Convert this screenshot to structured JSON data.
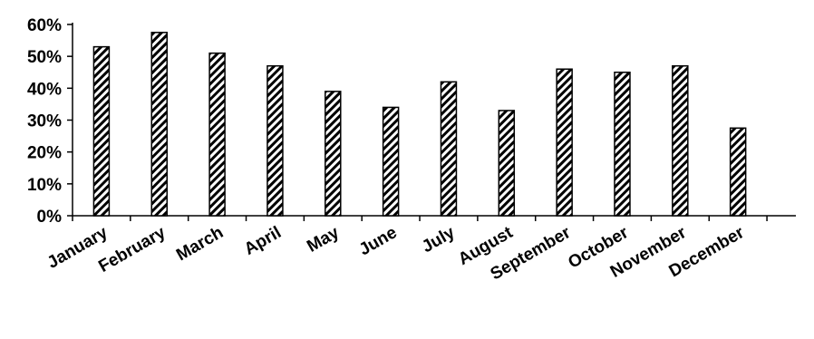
{
  "chart_data": {
    "type": "bar",
    "title": "",
    "xlabel": "",
    "ylabel": "",
    "categories": [
      "January",
      "February",
      "March",
      "April",
      "May",
      "June",
      "July",
      "August",
      "September",
      "October",
      "November",
      "December"
    ],
    "values": [
      53,
      57.5,
      51,
      47,
      39,
      34,
      42,
      33,
      46,
      45,
      47,
      27.5
    ],
    "ylim": [
      0,
      60
    ],
    "y_ticks": [
      0,
      10,
      20,
      30,
      40,
      50,
      60
    ],
    "y_tick_format": "percent",
    "bar_fill": "diagonal-hatch",
    "colors": {
      "bar_stroke": "#000000",
      "hatch": "#000000",
      "background": "#ffffff"
    },
    "grid": false,
    "legend": "none"
  }
}
